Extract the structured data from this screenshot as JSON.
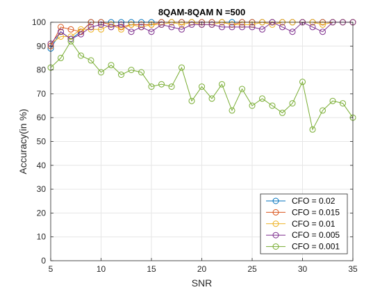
{
  "chart_data": {
    "type": "line",
    "title": "8QAM-8QAM N =500",
    "xlabel": "SNR",
    "ylabel": "Accuracy(in %)",
    "xlim": [
      5,
      35
    ],
    "ylim": [
      0,
      100
    ],
    "xticks": [
      "5",
      "10",
      "15",
      "20",
      "25",
      "30",
      "35"
    ],
    "yticks": [
      "0",
      "10",
      "20",
      "30",
      "40",
      "50",
      "60",
      "70",
      "80",
      "90",
      "100"
    ],
    "grid": true,
    "legend_position": "bottom-right",
    "x": [
      5,
      6,
      7,
      8,
      9,
      10,
      11,
      12,
      13,
      14,
      15,
      16,
      17,
      18,
      19,
      20,
      21,
      22,
      23,
      24,
      25,
      26,
      27,
      28,
      29,
      30,
      31,
      32,
      33,
      34,
      35
    ],
    "series": [
      {
        "name": "CFO = 0.02",
        "color": "#0072BD",
        "values": [
          89,
          96,
          93,
          96,
          100,
          100,
          100,
          100,
          100,
          100,
          100,
          100,
          100,
          100,
          100,
          100,
          100,
          100,
          100,
          100,
          100,
          100,
          100,
          100,
          100,
          100,
          100,
          100,
          100,
          100,
          100
        ]
      },
      {
        "name": "CFO = 0.015",
        "color": "#D95319",
        "values": [
          90,
          98,
          97,
          96,
          100,
          100,
          99,
          98,
          99,
          99,
          99,
          100,
          100,
          100,
          100,
          100,
          100,
          100,
          99,
          100,
          100,
          100,
          100,
          100,
          100,
          100,
          100,
          100,
          100,
          100,
          100
        ]
      },
      {
        "name": "CFO = 0.01",
        "color": "#EDB120",
        "values": [
          91,
          94,
          94,
          97,
          97,
          97,
          99,
          97,
          99,
          98,
          99,
          99,
          100,
          99,
          100,
          99,
          99,
          100,
          99,
          99,
          99,
          100,
          99,
          100,
          100,
          100,
          100,
          99,
          100,
          100,
          100
        ]
      },
      {
        "name": "CFO = 0.005",
        "color": "#7E2F8E",
        "values": [
          91,
          96,
          93,
          95,
          98,
          99,
          98,
          99,
          96,
          98,
          96,
          99,
          98,
          97,
          99,
          99,
          99,
          98,
          98,
          98,
          98,
          97,
          100,
          98,
          96,
          100,
          98,
          96,
          100,
          100,
          100
        ]
      },
      {
        "name": "CFO = 0.001",
        "color": "#77AC30",
        "values": [
          81,
          85,
          92,
          86,
          84,
          79,
          82,
          78,
          80,
          79,
          73,
          74,
          73,
          81,
          67,
          73,
          68,
          74,
          63,
          72,
          65,
          68,
          65,
          62,
          66,
          75,
          55,
          63,
          67,
          66,
          60
        ]
      }
    ]
  }
}
